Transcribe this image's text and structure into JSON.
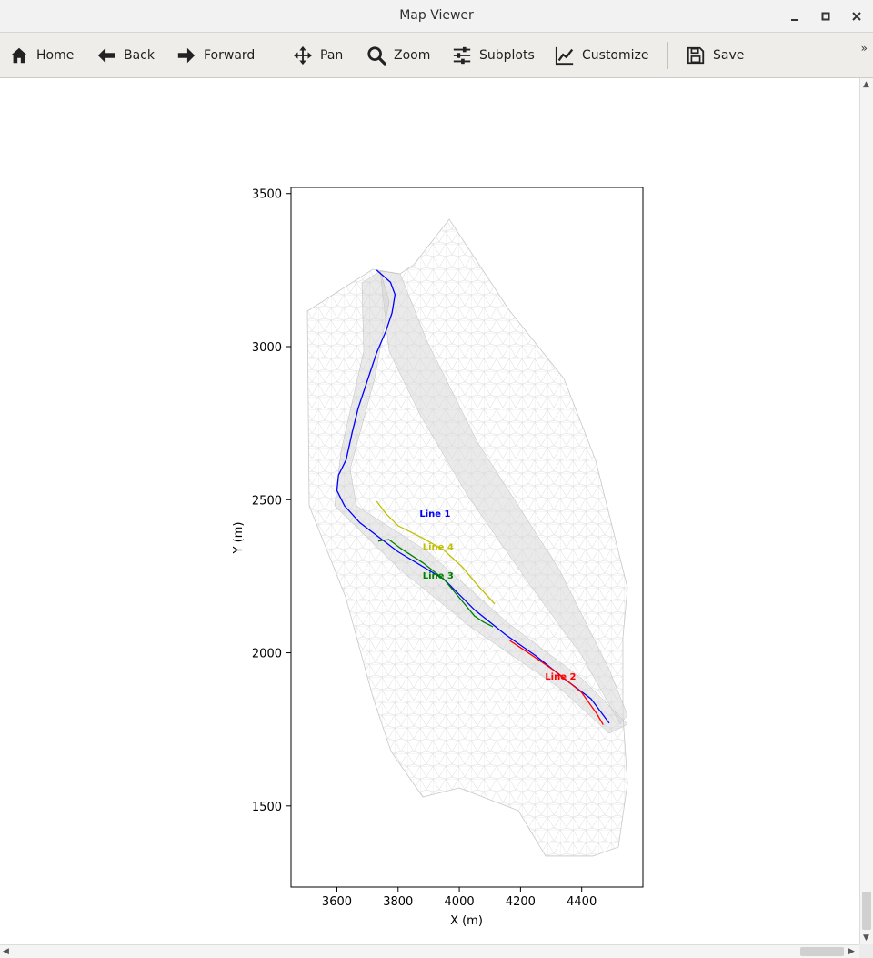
{
  "window": {
    "title": "Map Viewer"
  },
  "toolbar": {
    "home_label": "Home",
    "back_label": "Back",
    "forward_label": "Forward",
    "pan_label": "Pan",
    "zoom_label": "Zoom",
    "subplots_label": "Subplots",
    "customize_label": "Customize",
    "save_label": "Save",
    "more_label": "»"
  },
  "chart_data": {
    "type": "line",
    "title": "",
    "xlabel": "X (m)",
    "ylabel": "Y (m)",
    "xlim": [
      3450,
      4600
    ],
    "ylim": [
      1235,
      3520
    ],
    "xticks": [
      3600,
      3800,
      4000,
      4200,
      4400
    ],
    "yticks": [
      1500,
      2000,
      2500,
      3000,
      3500
    ],
    "grid": false,
    "legend": "none",
    "background": "triangular mesh of the terrain (light grey)",
    "series": [
      {
        "name": "Line 1",
        "color": "#0000ff",
        "label_pos": [
          3870,
          2445
        ],
        "x": [
          3730,
          3775,
          3790,
          3780,
          3760,
          3730,
          3700,
          3670,
          3650,
          3630,
          3605,
          3600,
          3625,
          3675,
          3800,
          3950,
          4050,
          4150,
          4250,
          4350,
          4430,
          4490
        ],
        "y": [
          3250,
          3210,
          3170,
          3110,
          3050,
          2980,
          2890,
          2800,
          2720,
          2630,
          2580,
          2530,
          2480,
          2425,
          2330,
          2240,
          2140,
          2060,
          1990,
          1910,
          1850,
          1770
        ]
      },
      {
        "name": "Line 2",
        "color": "#ff0000",
        "label_pos": [
          4280,
          1912
        ],
        "x": [
          4165,
          4240,
          4320,
          4400,
          4450,
          4470
        ],
        "y": [
          2040,
          1990,
          1935,
          1870,
          1800,
          1765
        ]
      },
      {
        "name": "Line 3",
        "color": "#008000",
        "label_pos": [
          3880,
          2243
        ],
        "x": [
          3735,
          3770,
          3810,
          3880,
          3950,
          4000,
          4050,
          4080,
          4110
        ],
        "y": [
          2365,
          2370,
          2340,
          2295,
          2240,
          2180,
          2120,
          2100,
          2085
        ]
      },
      {
        "name": "Line 4",
        "color": "#bfbf00",
        "label_pos": [
          3880,
          2336
        ],
        "x": [
          3730,
          3760,
          3800,
          3880,
          3950,
          4010,
          4060,
          4115
        ],
        "y": [
          2495,
          2455,
          2415,
          2375,
          2335,
          2280,
          2220,
          2160
        ]
      }
    ]
  }
}
